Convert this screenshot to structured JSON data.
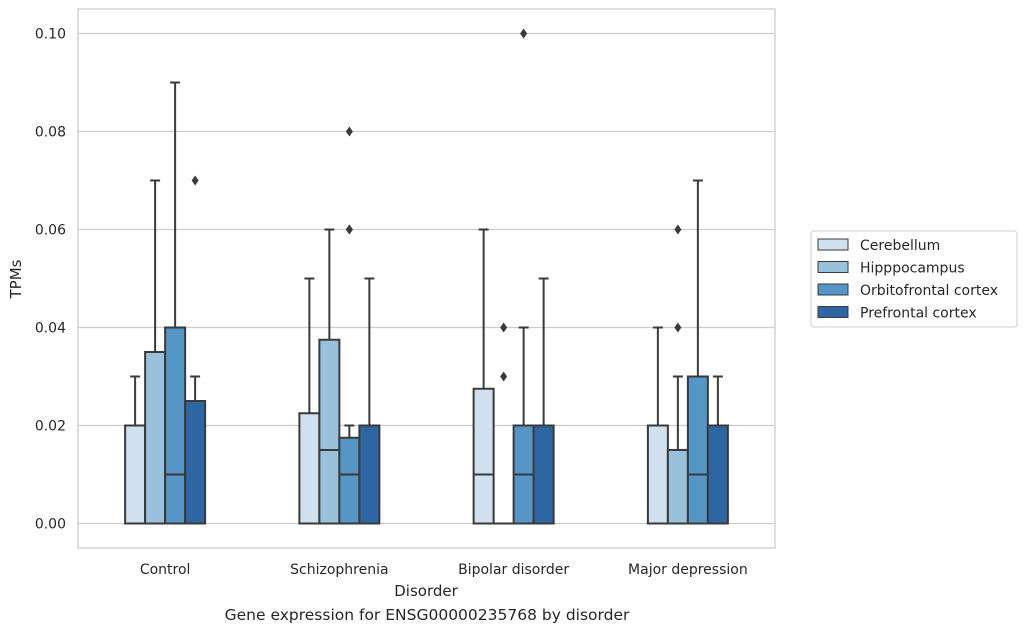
{
  "caption": "Gene expression for ENSG00000235768 by disorder",
  "chart_data": {
    "type": "box",
    "xlabel": "Disorder",
    "ylabel": "TPMs",
    "ylim": [
      -0.005,
      0.105
    ],
    "yticks": [
      "0.00",
      "0.02",
      "0.04",
      "0.06",
      "0.08",
      "0.10"
    ],
    "grid": true,
    "legend_position": "right",
    "categories": [
      "Control",
      "Schizophrenia",
      "Bipolar disorder",
      "Major depression"
    ],
    "series": [
      {
        "name": "Cerebellum",
        "color": "#d0e0ef",
        "boxes": [
          {
            "q1": 0.0,
            "median": 0.0,
            "q3": 0.02,
            "whisker_low": 0.0,
            "whisker_high": 0.03,
            "outliers": []
          },
          {
            "q1": 0.0,
            "median": 0.0,
            "q3": 0.0225,
            "whisker_low": 0.0,
            "whisker_high": 0.05,
            "outliers": []
          },
          {
            "q1": 0.0,
            "median": 0.01,
            "q3": 0.0275,
            "whisker_low": 0.0,
            "whisker_high": 0.06,
            "outliers": []
          },
          {
            "q1": 0.0,
            "median": 0.0,
            "q3": 0.02,
            "whisker_low": 0.0,
            "whisker_high": 0.04,
            "outliers": []
          }
        ]
      },
      {
        "name": "Hipppocampus",
        "color": "#9ac1dc",
        "boxes": [
          {
            "q1": 0.0,
            "median": 0.0,
            "q3": 0.035,
            "whisker_low": 0.0,
            "whisker_high": 0.07,
            "outliers": []
          },
          {
            "q1": 0.0,
            "median": 0.015,
            "q3": 0.0375,
            "whisker_low": 0.0,
            "whisker_high": 0.06,
            "outliers": []
          },
          {
            "q1": 0.0,
            "median": 0.0,
            "q3": 0.0,
            "whisker_low": 0.0,
            "whisker_high": 0.0,
            "outliers": [
              0.03,
              0.04
            ]
          },
          {
            "q1": 0.0,
            "median": 0.0,
            "q3": 0.015,
            "whisker_low": 0.0,
            "whisker_high": 0.03,
            "outliers": [
              0.04,
              0.06
            ]
          }
        ]
      },
      {
        "name": "Orbitofrontal cortex",
        "color": "#5596c6",
        "boxes": [
          {
            "q1": 0.0,
            "median": 0.01,
            "q3": 0.04,
            "whisker_low": 0.0,
            "whisker_high": 0.09,
            "outliers": []
          },
          {
            "q1": 0.0,
            "median": 0.01,
            "q3": 0.0175,
            "whisker_low": 0.0,
            "whisker_high": 0.02,
            "outliers": [
              0.06,
              0.06,
              0.08
            ]
          },
          {
            "q1": 0.0,
            "median": 0.01,
            "q3": 0.02,
            "whisker_low": 0.0,
            "whisker_high": 0.04,
            "outliers": [
              0.1
            ]
          },
          {
            "q1": 0.0,
            "median": 0.01,
            "q3": 0.03,
            "whisker_low": 0.0,
            "whisker_high": 0.07,
            "outliers": []
          }
        ]
      },
      {
        "name": "Prefrontal cortex",
        "color": "#2d66a3",
        "boxes": [
          {
            "q1": 0.0,
            "median": 0.0,
            "q3": 0.025,
            "whisker_low": 0.0,
            "whisker_high": 0.03,
            "outliers": [
              0.07
            ]
          },
          {
            "q1": 0.0,
            "median": 0.0,
            "q3": 0.02,
            "whisker_low": 0.0,
            "whisker_high": 0.05,
            "outliers": []
          },
          {
            "q1": 0.0,
            "median": 0.0,
            "q3": 0.02,
            "whisker_low": 0.0,
            "whisker_high": 0.05,
            "outliers": []
          },
          {
            "q1": 0.0,
            "median": 0.0,
            "q3": 0.02,
            "whisker_low": 0.0,
            "whisker_high": 0.03,
            "outliers": []
          }
        ]
      }
    ]
  }
}
